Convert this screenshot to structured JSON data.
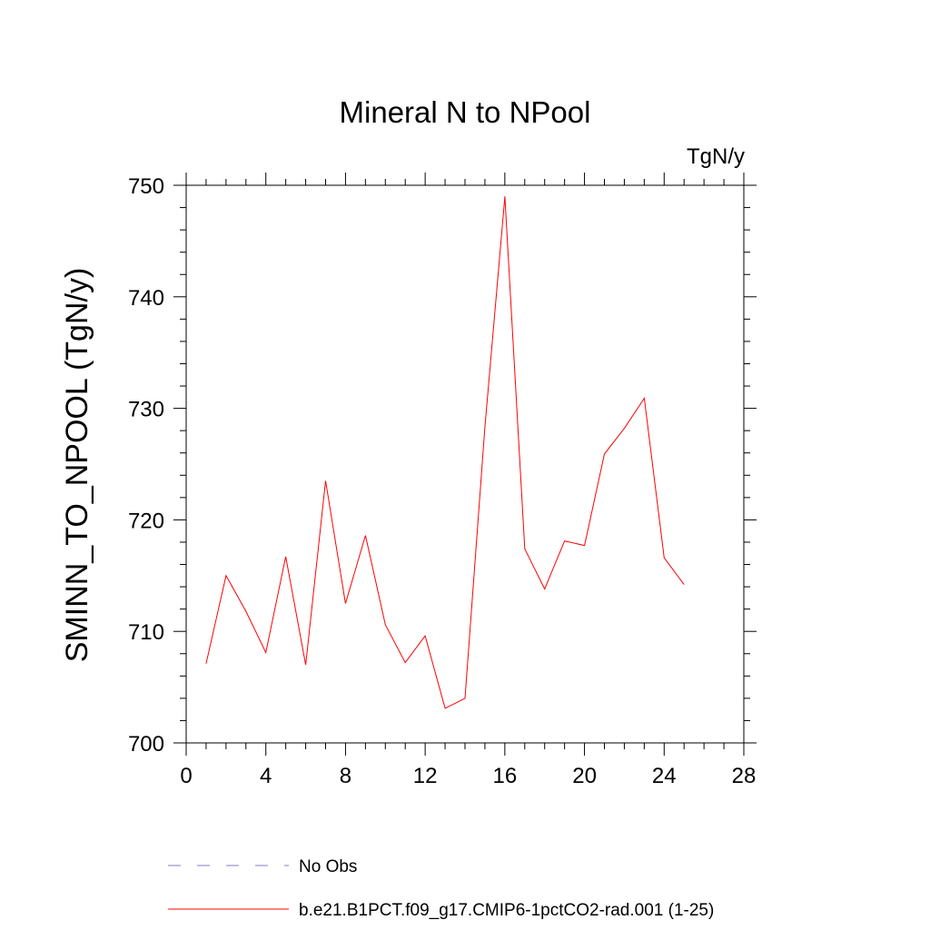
{
  "chart_data": {
    "type": "line",
    "title": "Mineral N to NPool",
    "units": "TgN/y",
    "ylabel": "SMINN_TO_NPOOL  (TgN/y)",
    "xlabel": "",
    "xlim": [
      0,
      28
    ],
    "ylim": [
      700,
      750
    ],
    "x_ticks": [
      0,
      4,
      8,
      12,
      16,
      20,
      24,
      28
    ],
    "y_ticks": [
      700,
      710,
      720,
      730,
      740,
      750
    ],
    "grid": false,
    "legend_position": "bottom",
    "series": [
      {
        "name": "b.e21.B1PCT.f09_g17.CMIP6-1pctCO2-rad.001 (1-25)",
        "color": "#ff0000",
        "style": "solid",
        "x": [
          1,
          2,
          3,
          4,
          5,
          6,
          7,
          8,
          9,
          10,
          11,
          12,
          13,
          14,
          15,
          16,
          17,
          18,
          19,
          20,
          21,
          22,
          23,
          24,
          25
        ],
        "y": [
          707.1,
          715.0,
          711.8,
          708.1,
          716.7,
          707.0,
          723.5,
          712.5,
          718.6,
          710.6,
          707.2,
          709.6,
          703.1,
          704.0,
          728.3,
          749.0,
          717.4,
          713.8,
          718.1,
          717.7,
          725.9,
          728.2,
          730.9,
          716.6,
          714.2
        ]
      }
    ],
    "legend": [
      {
        "label": "No Obs",
        "color": "#7f7fbf",
        "style": "dashed"
      },
      {
        "label": "b.e21.B1PCT.f09_g17.CMIP6-1pctCO2-rad.001 (1-25)",
        "color": "#ff0000",
        "style": "solid"
      }
    ]
  }
}
